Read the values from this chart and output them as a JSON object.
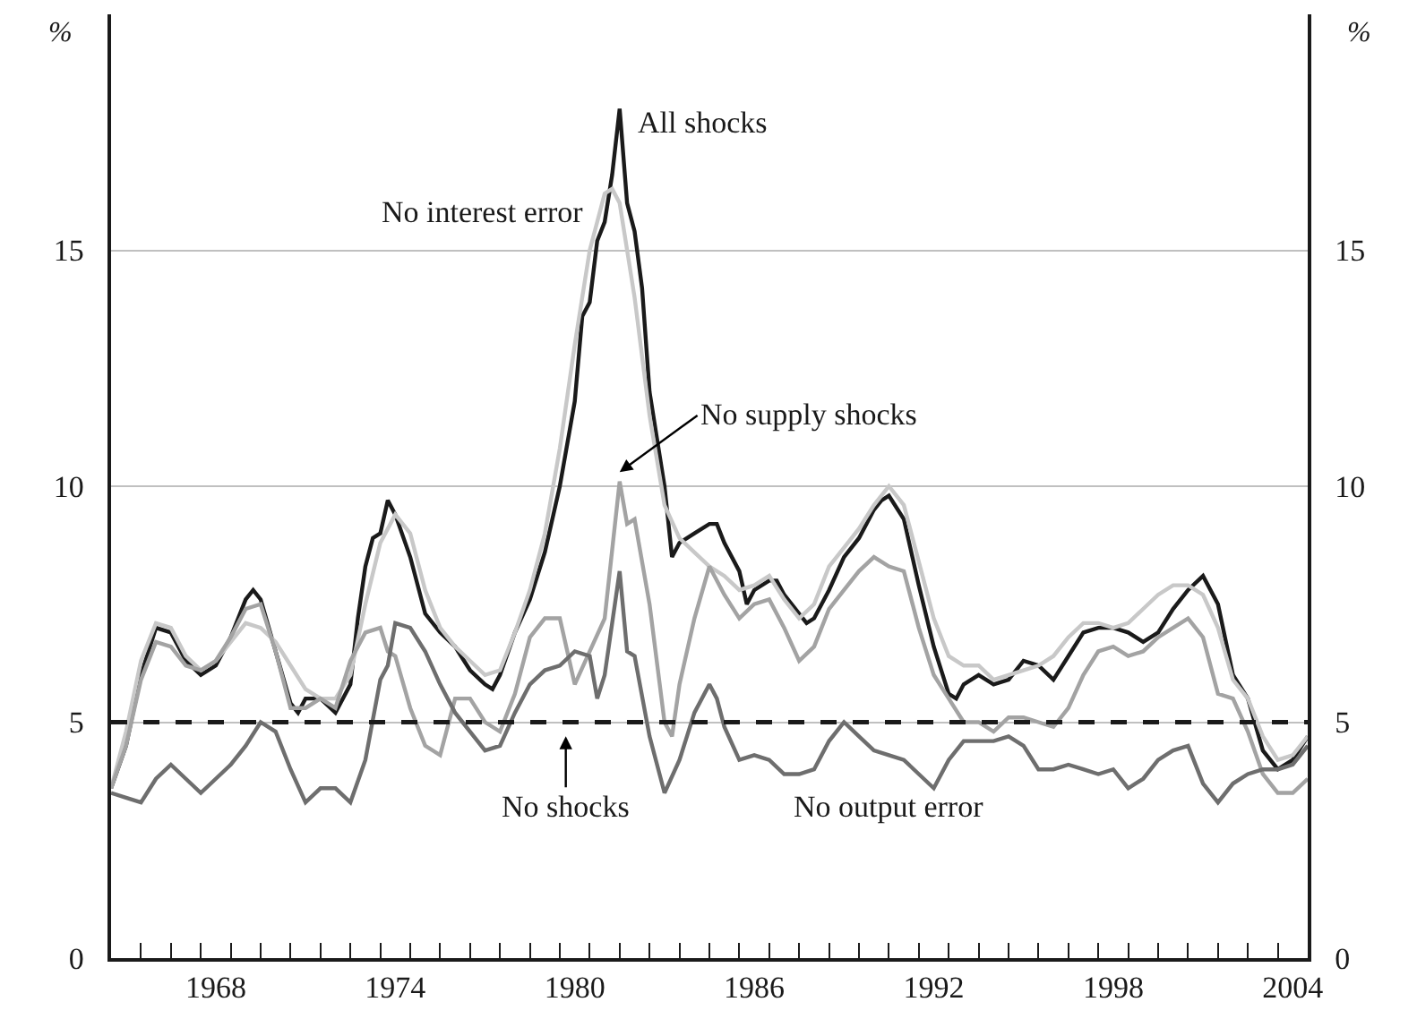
{
  "chart_data": {
    "type": "line",
    "ylabel": "%",
    "y2label": "%",
    "xlim": [
      1965,
      2005
    ],
    "ylim": [
      0,
      20
    ],
    "y2lim": [
      0,
      20
    ],
    "yticks": [
      0,
      5,
      10,
      15
    ],
    "y2ticks": [
      0,
      5,
      10,
      15
    ],
    "xticks": [
      {
        "value": 1966,
        "label": null
      },
      {
        "value": 1967,
        "label": null
      },
      {
        "value": 1968,
        "label": null
      },
      {
        "value": 1968.5,
        "label": "1968"
      },
      {
        "value": 1969,
        "label": null
      },
      {
        "value": 1970,
        "label": null
      },
      {
        "value": 1971,
        "label": null
      },
      {
        "value": 1972,
        "label": null
      },
      {
        "value": 1973,
        "label": null
      },
      {
        "value": 1974,
        "label": null
      },
      {
        "value": 1974.5,
        "label": "1974"
      },
      {
        "value": 1975,
        "label": null
      },
      {
        "value": 1976,
        "label": null
      },
      {
        "value": 1977,
        "label": null
      },
      {
        "value": 1978,
        "label": null
      },
      {
        "value": 1979,
        "label": null
      },
      {
        "value": 1980,
        "label": null
      },
      {
        "value": 1980.5,
        "label": "1980"
      },
      {
        "value": 1981,
        "label": null
      },
      {
        "value": 1982,
        "label": null
      },
      {
        "value": 1983,
        "label": null
      },
      {
        "value": 1984,
        "label": null
      },
      {
        "value": 1985,
        "label": null
      },
      {
        "value": 1986,
        "label": null
      },
      {
        "value": 1986.5,
        "label": "1986"
      },
      {
        "value": 1987,
        "label": null
      },
      {
        "value": 1988,
        "label": null
      },
      {
        "value": 1989,
        "label": null
      },
      {
        "value": 1990,
        "label": null
      },
      {
        "value": 1991,
        "label": null
      },
      {
        "value": 1992,
        "label": null
      },
      {
        "value": 1992.5,
        "label": "1992"
      },
      {
        "value": 1993,
        "label": null
      },
      {
        "value": 1994,
        "label": null
      },
      {
        "value": 1995,
        "label": null
      },
      {
        "value": 1996,
        "label": null
      },
      {
        "value": 1997,
        "label": null
      },
      {
        "value": 1998,
        "label": null
      },
      {
        "value": 1998.5,
        "label": "1998"
      },
      {
        "value": 1999,
        "label": null
      },
      {
        "value": 2000,
        "label": null
      },
      {
        "value": 2001,
        "label": null
      },
      {
        "value": 2002,
        "label": null
      },
      {
        "value": 2003,
        "label": null
      },
      {
        "value": 2004,
        "label": null
      },
      {
        "value": 2004.5,
        "label": "2004"
      }
    ],
    "grid": "y",
    "legend": false,
    "marker": "none",
    "line_style": "solid",
    "series": [
      {
        "name": "All shocks",
        "color": "#1a1a1a",
        "x": [
          1965,
          1965.5,
          1966,
          1966.5,
          1967,
          1967.5,
          1968,
          1968.5,
          1969,
          1969.5,
          1969.75,
          1970,
          1970.5,
          1971,
          1971.25,
          1971.5,
          1972,
          1972.5,
          1973,
          1973.25,
          1973.5,
          1973.75,
          1974,
          1974.25,
          1974.5,
          1975,
          1975.5,
          1976,
          1976.5,
          1977,
          1977.5,
          1977.75,
          1978,
          1978.5,
          1979,
          1979.5,
          1980,
          1980.5,
          1980.75,
          1981,
          1981.25,
          1981.5,
          1981.75,
          1982,
          1982.25,
          1982.5,
          1982.75,
          1983,
          1983.5,
          1983.75,
          1984,
          1984.5,
          1985,
          1985.25,
          1985.5,
          1986,
          1986.25,
          1986.5,
          1987,
          1987.25,
          1987.5,
          1988,
          1988.25,
          1988.5,
          1989,
          1989.5,
          1990,
          1990.5,
          1990.75,
          1991,
          1991.5,
          1992,
          1992.5,
          1993,
          1993.25,
          1993.5,
          1994,
          1994.5,
          1995,
          1995.5,
          1996,
          1996.5,
          1997,
          1997.5,
          1998,
          1998.5,
          1999,
          1999.5,
          2000,
          2000.5,
          2001,
          2001.5,
          2002,
          2002.5,
          2003,
          2003.5,
          2004,
          2004.5,
          2005
        ],
        "values": [
          3.6,
          4.5,
          6.0,
          7.0,
          6.9,
          6.3,
          6.0,
          6.2,
          6.8,
          7.6,
          7.8,
          7.6,
          6.5,
          5.4,
          5.2,
          5.5,
          5.5,
          5.2,
          5.8,
          7.2,
          8.3,
          8.9,
          9.0,
          9.7,
          9.4,
          8.5,
          7.3,
          6.9,
          6.6,
          6.1,
          5.8,
          5.7,
          6.0,
          6.9,
          7.6,
          8.6,
          10.0,
          11.8,
          13.6,
          13.9,
          15.2,
          15.6,
          16.6,
          18.0,
          16.0,
          15.4,
          14.2,
          12.0,
          10.0,
          8.5,
          8.8,
          9.0,
          9.2,
          9.2,
          8.8,
          8.2,
          7.5,
          7.8,
          8.0,
          8.0,
          7.7,
          7.3,
          7.1,
          7.2,
          7.8,
          8.5,
          8.9,
          9.5,
          9.7,
          9.8,
          9.3,
          7.9,
          6.6,
          5.6,
          5.5,
          5.8,
          6.0,
          5.8,
          5.9,
          6.3,
          6.2,
          5.9,
          6.4,
          6.9,
          7.0,
          7.0,
          6.9,
          6.7,
          6.9,
          7.4,
          7.8,
          8.1,
          7.5,
          6.0,
          5.5,
          4.4,
          4.0,
          4.2,
          4.7
        ]
      },
      {
        "name": "No interest error",
        "color": "#c8c8c8",
        "x": [
          1965,
          1965.5,
          1966,
          1966.5,
          1967,
          1967.5,
          1968,
          1968.5,
          1969,
          1969.5,
          1970,
          1970.5,
          1971,
          1971.5,
          1972,
          1972.5,
          1973,
          1973.5,
          1974,
          1974.5,
          1975,
          1975.5,
          1976,
          1976.5,
          1977,
          1977.5,
          1978,
          1978.5,
          1979,
          1979.5,
          1980,
          1980.5,
          1981,
          1981.5,
          1981.75,
          1982,
          1982.5,
          1983,
          1983.5,
          1984,
          1984.5,
          1985,
          1985.5,
          1986,
          1986.5,
          1987,
          1987.5,
          1988,
          1988.5,
          1989,
          1989.5,
          1990,
          1990.5,
          1991,
          1991.5,
          1992,
          1992.5,
          1993,
          1993.5,
          1994,
          1994.5,
          1995,
          1995.5,
          1996,
          1996.5,
          1997,
          1997.5,
          1998,
          1998.5,
          1999,
          1999.5,
          2000,
          2000.5,
          2001,
          2001.5,
          2002,
          2002.5,
          2003,
          2003.5,
          2004,
          2004.5,
          2005
        ],
        "values": [
          3.6,
          4.8,
          6.3,
          7.1,
          7.0,
          6.4,
          6.1,
          6.3,
          6.7,
          7.1,
          7.0,
          6.7,
          6.2,
          5.7,
          5.5,
          5.5,
          6.0,
          7.5,
          8.8,
          9.4,
          9.0,
          7.8,
          7.0,
          6.6,
          6.3,
          6.0,
          6.1,
          6.9,
          7.8,
          9.0,
          10.8,
          13.0,
          15.0,
          16.2,
          16.3,
          16.0,
          14.0,
          11.5,
          9.6,
          8.9,
          8.6,
          8.3,
          8.1,
          7.8,
          7.9,
          8.1,
          7.6,
          7.2,
          7.5,
          8.3,
          8.7,
          9.1,
          9.6,
          10.0,
          9.6,
          8.4,
          7.2,
          6.4,
          6.2,
          6.2,
          5.9,
          6.0,
          6.1,
          6.2,
          6.4,
          6.8,
          7.1,
          7.1,
          7.0,
          7.1,
          7.4,
          7.7,
          7.9,
          7.9,
          7.7,
          7.0,
          5.9,
          5.5,
          4.7,
          4.2,
          4.3,
          4.7
        ]
      },
      {
        "name": "No supply shocks",
        "color": "#a3a3a3",
        "x": [
          1965,
          1965.5,
          1966,
          1966.5,
          1967,
          1967.5,
          1968,
          1968.5,
          1969,
          1969.5,
          1970,
          1970.5,
          1971,
          1971.5,
          1972,
          1972.5,
          1973,
          1973.5,
          1974,
          1974.25,
          1974.5,
          1975,
          1975.5,
          1976,
          1976.5,
          1977,
          1977.5,
          1978,
          1978.5,
          1979,
          1979.5,
          1980,
          1980.5,
          1981,
          1981.5,
          1982,
          1982.25,
          1982.5,
          1983,
          1983.5,
          1983.75,
          1984,
          1984.5,
          1985,
          1985.5,
          1986,
          1986.5,
          1987,
          1987.5,
          1988,
          1988.5,
          1989,
          1989.5,
          1990,
          1990.5,
          1991,
          1991.5,
          1992,
          1992.5,
          1993,
          1993.5,
          1994,
          1994.5,
          1995,
          1995.5,
          1996,
          1996.5,
          1997,
          1997.5,
          1998,
          1998.5,
          1999,
          1999.5,
          2000,
          2000.5,
          2001,
          2001.5,
          2002,
          2002.5,
          2003,
          2003.5,
          2004,
          2004.5,
          2005
        ],
        "values": [
          3.6,
          4.5,
          5.9,
          6.7,
          6.6,
          6.2,
          6.1,
          6.3,
          6.8,
          7.4,
          7.5,
          6.5,
          5.3,
          5.3,
          5.5,
          5.3,
          6.3,
          6.9,
          7.0,
          6.5,
          6.4,
          5.3,
          4.5,
          4.3,
          5.5,
          5.5,
          5.0,
          4.8,
          5.6,
          6.8,
          7.2,
          7.2,
          5.8,
          6.5,
          7.2,
          10.1,
          9.2,
          9.3,
          7.5,
          5.0,
          4.7,
          5.8,
          7.2,
          8.3,
          7.7,
          7.2,
          7.5,
          7.6,
          7.0,
          6.3,
          6.6,
          7.4,
          7.8,
          8.2,
          8.5,
          8.3,
          8.2,
          7.0,
          6.0,
          5.5,
          5.0,
          5.0,
          4.8,
          5.1,
          5.1,
          5.0,
          4.9,
          5.3,
          6.0,
          6.5,
          6.6,
          6.4,
          6.5,
          6.8,
          7.0,
          7.2,
          6.8,
          5.6,
          5.5,
          4.8,
          3.9,
          3.5,
          3.5,
          3.8
        ]
      },
      {
        "name": "No output error",
        "color": "#6e6e6e",
        "x": [
          1965,
          1965.5,
          1966,
          1966.5,
          1967,
          1967.5,
          1968,
          1968.5,
          1969,
          1969.5,
          1970,
          1970.5,
          1971,
          1971.5,
          1972,
          1972.5,
          1973,
          1973.5,
          1974,
          1974.25,
          1974.5,
          1975,
          1975.5,
          1976,
          1976.5,
          1977,
          1977.5,
          1978,
          1978.5,
          1979,
          1979.5,
          1980,
          1980.5,
          1981,
          1981.25,
          1981.5,
          1982,
          1982.25,
          1982.5,
          1983,
          1983.5,
          1984,
          1984.5,
          1985,
          1985.25,
          1985.5,
          1986,
          1986.5,
          1987,
          1987.5,
          1988,
          1988.5,
          1989,
          1989.5,
          1990,
          1990.5,
          1991,
          1991.5,
          1992,
          1992.5,
          1993,
          1993.5,
          1994,
          1994.5,
          1995,
          1995.5,
          1996,
          1996.5,
          1997,
          1997.5,
          1998,
          1998.5,
          1999,
          1999.5,
          2000,
          2000.5,
          2001,
          2001.5,
          2002,
          2002.5,
          2003,
          2003.5,
          2004,
          2004.5,
          2005
        ],
        "values": [
          3.5,
          3.4,
          3.3,
          3.8,
          4.1,
          3.8,
          3.5,
          3.8,
          4.1,
          4.5,
          5.0,
          4.8,
          4.0,
          3.3,
          3.6,
          3.6,
          3.3,
          4.2,
          5.9,
          6.2,
          7.1,
          7.0,
          6.5,
          5.8,
          5.2,
          4.8,
          4.4,
          4.5,
          5.2,
          5.8,
          6.1,
          6.2,
          6.5,
          6.4,
          5.5,
          6.0,
          8.2,
          6.5,
          6.4,
          4.7,
          3.5,
          4.2,
          5.2,
          5.8,
          5.5,
          4.9,
          4.2,
          4.3,
          4.2,
          3.9,
          3.9,
          4.0,
          4.6,
          5.0,
          4.7,
          4.4,
          4.3,
          4.2,
          3.9,
          3.6,
          4.2,
          4.6,
          4.6,
          4.6,
          4.7,
          4.5,
          4.0,
          4.0,
          4.1,
          4.0,
          3.9,
          4.0,
          3.6,
          3.8,
          4.2,
          4.4,
          4.5,
          3.7,
          3.3,
          3.7,
          3.9,
          4.0,
          4.0,
          4.1,
          4.5
        ]
      },
      {
        "name": "No shocks",
        "color": "#1a1a1a",
        "line_style": "dashed",
        "x": [
          1965,
          2005
        ],
        "values": [
          5,
          5
        ]
      }
    ]
  }
}
